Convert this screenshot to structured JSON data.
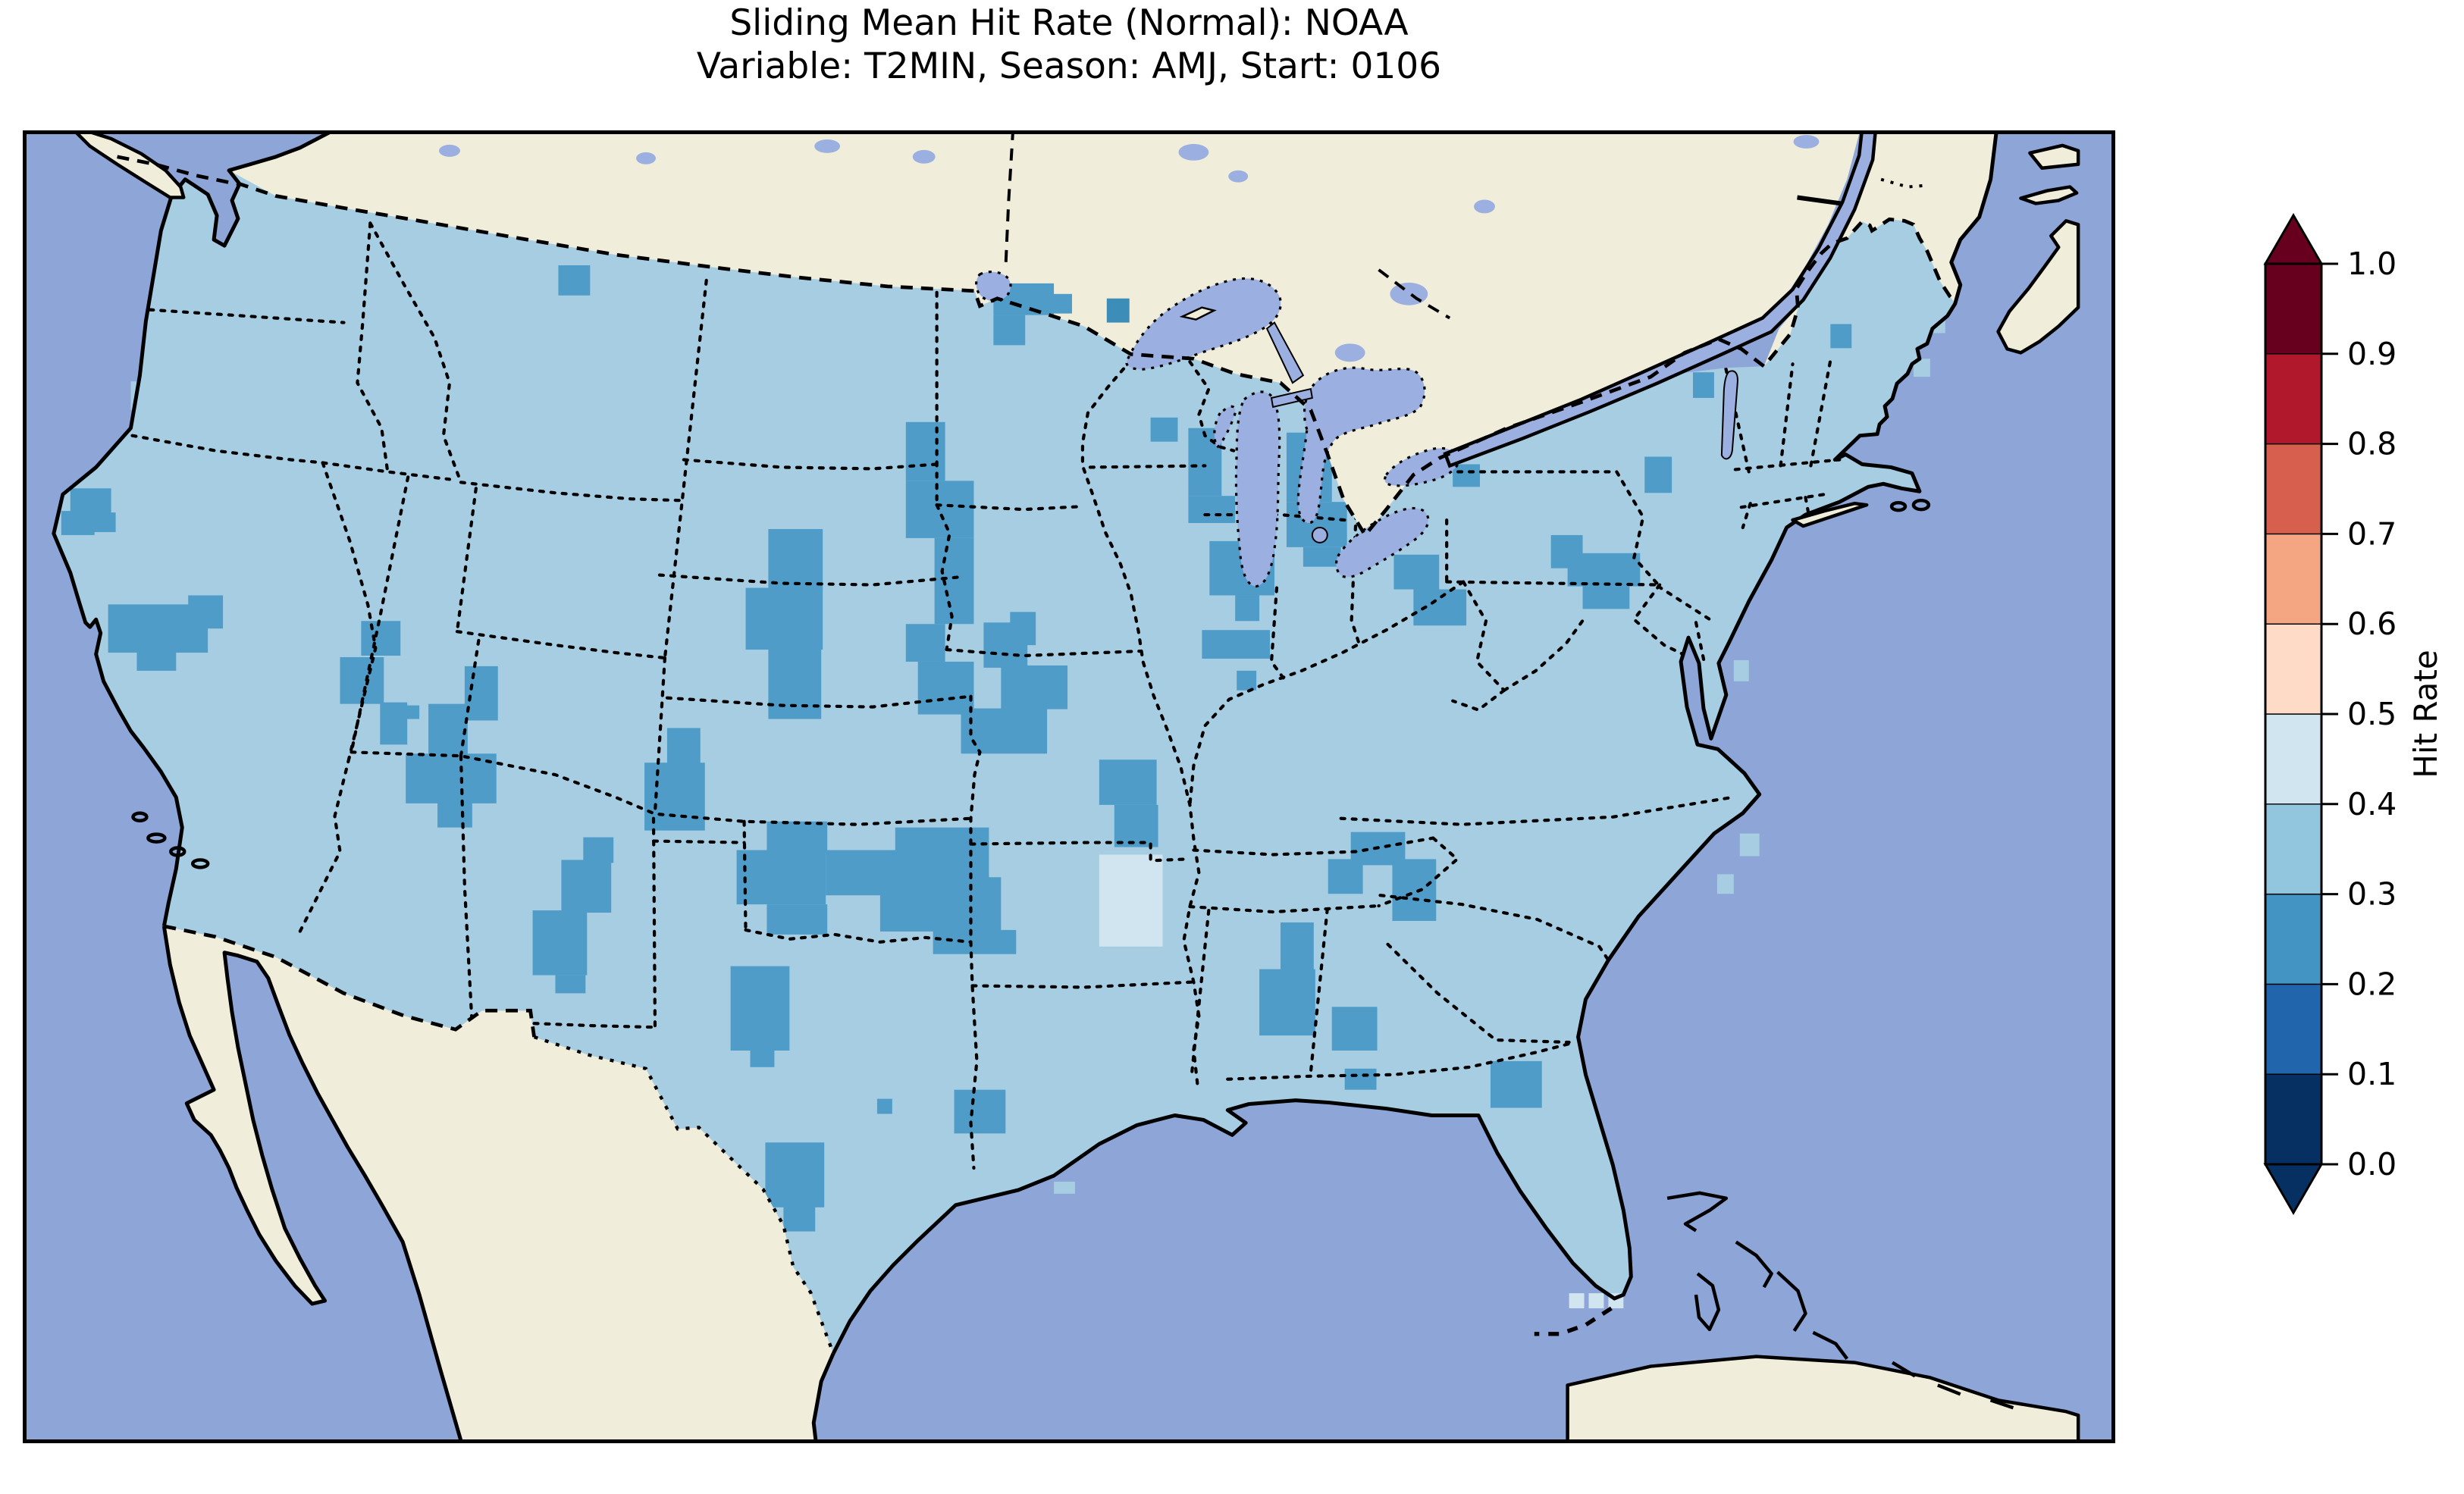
{
  "title": {
    "line1": "Sliding Mean Hit Rate (Normal): NOAA",
    "line2": "Variable: T2MIN, Season: AMJ, Start: 0106"
  },
  "colorbar": {
    "label": "Hit Rate",
    "tick_labels": [
      "0.0",
      "0.1",
      "0.2",
      "0.3",
      "0.4",
      "0.5",
      "0.6",
      "0.7",
      "0.8",
      "0.9",
      "1.0"
    ],
    "colors": [
      "#053061",
      "#2166ac",
      "#4393c3",
      "#92c5de",
      "#d1e5f0",
      "#fddbc7",
      "#f4a582",
      "#d6604d",
      "#b2182b",
      "#67001f"
    ],
    "extend": "both"
  },
  "map": {
    "colors": {
      "ocean": "#8da5d7",
      "land": "#f0eedb",
      "lake": "#9bb0e0",
      "base": "#a6cde2",
      "coast": "#000000"
    }
  },
  "chart_data": {
    "type": "heatmap",
    "subtype": "geographic gridded forecast verification map (CONUS, conic projection)",
    "title": "Sliding Mean Hit Rate (Normal): NOAA",
    "subtitle": "Variable: T2MIN, Season: AMJ, Start: 0106",
    "variable": "T2MIN",
    "season": "AMJ",
    "start": "0106",
    "source": "NOAA",
    "colorbar_label": "Hit Rate",
    "bin_edges": [
      0.0,
      0.1,
      0.2,
      0.3,
      0.4,
      0.5,
      0.6,
      0.7,
      0.8,
      0.9,
      1.0
    ],
    "scale_colors": [
      "#053061",
      "#2166ac",
      "#4393c3",
      "#92c5de",
      "#d1e5f0",
      "#fddbc7",
      "#f4a582",
      "#d6604d",
      "#b2182b",
      "#67001f"
    ],
    "legend_position": "right",
    "dominant_bin": "0.3-0.4",
    "notes": "Nearly all CONUS grid cells fall in the 0.3-0.4 hit-rate bin (light blue); scattered clusters fall in 0.2-0.3 (medium blue); a few cells reach 0.4-0.5 (very light blue). No cells above 0.5.",
    "bin_colors": {
      "0.2-0.3": "#4f9cc9",
      "0.3-0.4": "#a6cde2",
      "0.4-0.5": "#d1e5f0",
      "lake-edge": "#3d8db9"
    },
    "cells": [
      {
        "name": "north-california",
        "bin": "0.2-0.3",
        "clip": true,
        "rects": [
          [
            58,
            470,
            54,
            40
          ],
          [
            46,
            500,
            44,
            32
          ],
          [
            88,
            502,
            30,
            26
          ]
        ]
      },
      {
        "name": "sierra-nevada",
        "bin": "0.2-0.3",
        "clip": true,
        "rects": [
          [
            108,
            624,
            132,
            64
          ],
          [
            214,
            612,
            46,
            44
          ],
          [
            146,
            686,
            52,
            26
          ]
        ]
      },
      {
        "name": "nevada-utah",
        "bin": "0.2-0.3",
        "clip": true,
        "rects": [
          [
            443,
            646,
            52,
            46
          ],
          [
            415,
            694,
            58,
            62
          ],
          [
            468,
            754,
            36,
            56
          ],
          [
            580,
            706,
            44,
            72
          ],
          [
            532,
            756,
            52,
            72
          ],
          [
            502,
            822,
            120,
            66
          ],
          [
            544,
            886,
            46,
            34
          ],
          [
            502,
            758,
            18,
            18
          ]
        ]
      },
      {
        "name": "montana",
        "bin": "0.2-0.3",
        "clip": true,
        "rects": [
          [
            704,
            174,
            42,
            40
          ]
        ]
      },
      {
        "name": "colorado-new-mexico",
        "bin": "0.2-0.3",
        "clip": true,
        "rects": [
          [
            848,
            788,
            44,
            64
          ],
          [
            818,
            834,
            80,
            90
          ]
        ]
      },
      {
        "name": "new-mexico",
        "bin": "0.2-0.3",
        "clip": true,
        "rects": [
          [
            737,
            933,
            40,
            34
          ],
          [
            708,
            963,
            66,
            70
          ],
          [
            670,
            1030,
            72,
            86
          ],
          [
            700,
            1116,
            40,
            24
          ]
        ]
      },
      {
        "name": "oklahoma",
        "bin": "0.2-0.3",
        "clip": true,
        "rects": [
          [
            980,
            912,
            80,
            42
          ],
          [
            940,
            950,
            118,
            72
          ],
          [
            980,
            1022,
            80,
            40
          ],
          [
            1058,
            950,
            100,
            60
          ]
        ]
      },
      {
        "name": "oklahoma-arkansas",
        "bin": "0.2-0.3",
        "clip": true,
        "rects": [
          [
            1150,
            920,
            124,
            68
          ],
          [
            1130,
            986,
            160,
            72
          ],
          [
            1200,
            1056,
            110,
            32
          ]
        ]
      },
      {
        "name": "ozarks",
        "bin": "0.2-0.3",
        "clip": true,
        "rects": [
          [
            1420,
            830,
            76,
            60
          ],
          [
            1440,
            890,
            58,
            56
          ]
        ]
      },
      {
        "name": "nebraska-kansas",
        "bin": "0.2-0.3",
        "clip": true,
        "rects": [
          [
            982,
            524,
            72,
            80
          ],
          [
            952,
            602,
            102,
            82
          ],
          [
            982,
            682,
            70,
            94
          ]
        ]
      },
      {
        "name": "west-missouri",
        "bin": "0.2-0.3",
        "clip": true,
        "rects": [
          [
            1267,
            648,
            58,
            60
          ],
          [
            1290,
            705,
            88,
            58
          ],
          [
            1237,
            762,
            114,
            60
          ]
        ]
      },
      {
        "name": "minnesota-north",
        "bin": "0.2-0.3",
        "clip": false,
        "rects": [
          [
            1280,
            198,
            80,
            42
          ],
          [
            1280,
            240,
            42,
            40
          ],
          [
            1358,
            212,
            26,
            26
          ]
        ]
      },
      {
        "name": "lake-superior-shore",
        "bin": "lake-edge",
        "clip": false,
        "rects": [
          [
            1430,
            218,
            30,
            32
          ]
        ]
      },
      {
        "name": "minnesota-dakota",
        "bin": "0.2-0.3",
        "clip": true,
        "rects": [
          [
            1164,
            382,
            52,
            78
          ],
          [
            1164,
            460,
            90,
            76
          ],
          [
            1202,
            536,
            52,
            114
          ],
          [
            1164,
            650,
            52,
            50
          ],
          [
            1180,
            700,
            74,
            70
          ]
        ]
      },
      {
        "name": "wisconsin",
        "bin": "0.2-0.3",
        "clip": true,
        "rects": [
          [
            1488,
            376,
            36,
            32
          ],
          [
            1538,
            390,
            44,
            90
          ],
          [
            1538,
            480,
            62,
            36
          ]
        ]
      },
      {
        "name": "chicago-indiana",
        "bin": "0.2-0.3",
        "clip": true,
        "rects": [
          [
            1566,
            540,
            86,
            72
          ],
          [
            1600,
            612,
            32,
            34
          ]
        ]
      },
      {
        "name": "michigan",
        "bin": "0.2-0.3",
        "clip": true,
        "rects": [
          [
            1668,
            396,
            60,
            92
          ],
          [
            1668,
            488,
            80,
            60
          ],
          [
            1690,
            548,
            50,
            26
          ]
        ]
      },
      {
        "name": "illinois",
        "bin": "0.2-0.3",
        "clip": true,
        "rects": [
          [
            1556,
            658,
            90,
            38
          ],
          [
            1602,
            712,
            26,
            26
          ],
          [
            1302,
            634,
            34,
            44
          ]
        ]
      },
      {
        "name": "texas-north",
        "bin": "0.2-0.3",
        "clip": true,
        "rects": [
          [
            932,
            1104,
            78,
            112
          ],
          [
            958,
            1216,
            32,
            22
          ]
        ]
      },
      {
        "name": "texas-south",
        "bin": "0.2-0.3",
        "clip": true,
        "rects": [
          [
            978,
            1338,
            78,
            86
          ],
          [
            1002,
            1422,
            42,
            34
          ]
        ]
      },
      {
        "name": "texas-cell",
        "bin": "0.2-0.3",
        "clip": true,
        "rects": [
          [
            1126,
            1280,
            20,
            20
          ]
        ]
      },
      {
        "name": "louisiana",
        "bin": "0.2-0.3",
        "clip": true,
        "rects": [
          [
            1228,
            1268,
            68,
            58
          ]
        ]
      },
      {
        "name": "tennessee-valley",
        "bin": "0.2-0.3",
        "clip": true,
        "rects": [
          [
            1753,
            926,
            72,
            44
          ],
          [
            1808,
            962,
            58,
            82
          ],
          [
            1723,
            962,
            46,
            46
          ]
        ]
      },
      {
        "name": "alabama",
        "bin": "0.2-0.3",
        "clip": true,
        "rects": [
          [
            1660,
            1046,
            44,
            74
          ],
          [
            1632,
            1108,
            74,
            88
          ]
        ]
      },
      {
        "name": "south-georgia",
        "bin": "0.2-0.3",
        "clip": true,
        "rects": [
          [
            1728,
            1158,
            60,
            58
          ],
          [
            1745,
            1240,
            42,
            28
          ]
        ]
      },
      {
        "name": "coastal-georgia",
        "bin": "0.2-0.3",
        "clip": true,
        "rects": [
          [
            1938,
            1230,
            68,
            62
          ]
        ]
      },
      {
        "name": "new-york-pennsylvania",
        "bin": "0.2-0.3",
        "clip": true,
        "rects": [
          [
            1810,
            558,
            60,
            46
          ],
          [
            1836,
            604,
            70,
            48
          ],
          [
            1888,
            438,
            36,
            30
          ]
        ]
      },
      {
        "name": "pennsylvania",
        "bin": "0.2-0.3",
        "clip": true,
        "rects": [
          [
            2018,
            532,
            42,
            44
          ],
          [
            2040,
            556,
            96,
            44
          ],
          [
            2060,
            600,
            62,
            30
          ]
        ]
      },
      {
        "name": "adirondack",
        "bin": "0.2-0.3",
        "clip": true,
        "rects": [
          [
            2142,
            428,
            36,
            48
          ]
        ]
      },
      {
        "name": "vermont-border",
        "bin": "0.2-0.3",
        "clip": false,
        "rects": [
          [
            2206,
            316,
            28,
            34
          ]
        ]
      },
      {
        "name": "maine-west",
        "bin": "0.2-0.3",
        "clip": false,
        "rects": [
          [
            2388,
            252,
            28,
            32
          ]
        ]
      },
      {
        "name": "arkansas-light",
        "bin": "0.4-0.5",
        "clip": false,
        "rects": [
          [
            1420,
            956,
            84,
            122
          ]
        ]
      },
      {
        "name": "nebraska-light",
        "bin": "0.4-0.5",
        "clip": false,
        "rects": [
          [
            1018,
            636,
            26,
            26
          ]
        ]
      },
      {
        "name": "florida-keys-light",
        "bin": "0.4-0.5",
        "clip": false,
        "rects": [
          [
            2042,
            1538,
            20,
            20
          ],
          [
            2068,
            1538,
            20,
            20
          ],
          [
            2094,
            1538,
            20,
            20
          ]
        ]
      },
      {
        "name": "coastal-fringe",
        "bin": "0.3-0.4",
        "clip": false,
        "rects": [
          [
            138,
            328,
            16,
            38
          ],
          [
            148,
            428,
            16,
            40
          ],
          [
            2268,
            928,
            26,
            30
          ],
          [
            2238,
            982,
            22,
            26
          ],
          [
            2260,
            698,
            20,
            28
          ],
          [
            2516,
            238,
            24,
            26
          ],
          [
            2498,
            298,
            22,
            24
          ],
          [
            1556,
            1280,
            30,
            16
          ],
          [
            1360,
            1390,
            28,
            16
          ]
        ]
      }
    ]
  }
}
